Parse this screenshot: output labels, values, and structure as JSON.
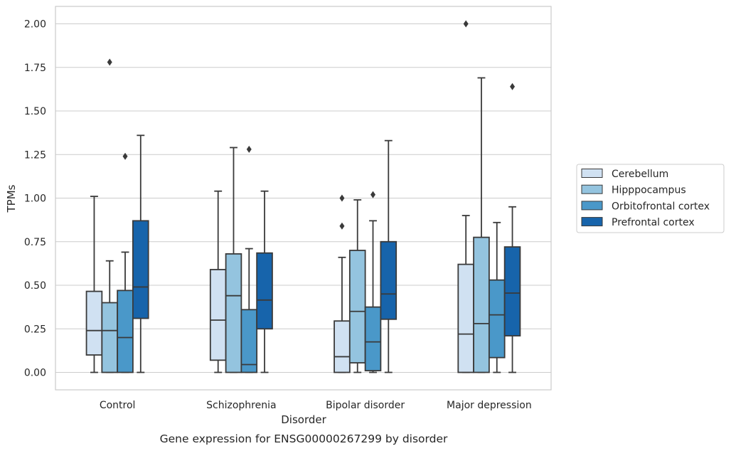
{
  "caption": "Gene expression for ENSG00000267299 by disorder",
  "chart_data": {
    "type": "box",
    "xlabel": "Disorder",
    "ylabel": "TPMs",
    "ylim": [
      -0.1,
      2.1
    ],
    "yticks": [
      0.0,
      0.25,
      0.5,
      0.75,
      1.0,
      1.25,
      1.5,
      1.75,
      2.0
    ],
    "ytick_labels": [
      "0.00",
      "0.25",
      "0.50",
      "0.75",
      "1.00",
      "1.25",
      "1.50",
      "1.75",
      "2.00"
    ],
    "grid": "horizontal",
    "legend_position": "center-right",
    "categories": [
      "Control",
      "Schizophrenia",
      "Bipolar disorder",
      "Major depression"
    ],
    "series": [
      {
        "name": "Cerebellum",
        "color": "#d0e1f2",
        "boxes": [
          {
            "whislo": 0.0,
            "q1": 0.1,
            "med": 0.24,
            "q3": 0.465,
            "whishi": 1.01,
            "fliers": []
          },
          {
            "whislo": 0.0,
            "q1": 0.07,
            "med": 0.3,
            "q3": 0.59,
            "whishi": 1.04,
            "fliers": []
          },
          {
            "whislo": 0.0,
            "q1": 0.0,
            "med": 0.09,
            "q3": 0.295,
            "whishi": 0.66,
            "fliers": [
              0.84,
              1.0
            ]
          },
          {
            "whislo": 0.0,
            "q1": 0.0,
            "med": 0.22,
            "q3": 0.62,
            "whishi": 0.9,
            "fliers": [
              2.0
            ]
          }
        ]
      },
      {
        "name": "Hipppocampus",
        "color": "#94c4df",
        "boxes": [
          {
            "whislo": 0.0,
            "q1": 0.0,
            "med": 0.24,
            "q3": 0.4,
            "whishi": 0.64,
            "fliers": [
              1.78
            ]
          },
          {
            "whislo": 0.0,
            "q1": 0.0,
            "med": 0.44,
            "q3": 0.68,
            "whishi": 1.29,
            "fliers": []
          },
          {
            "whislo": 0.0,
            "q1": 0.055,
            "med": 0.35,
            "q3": 0.7,
            "whishi": 0.99,
            "fliers": []
          },
          {
            "whislo": 0.0,
            "q1": 0.0,
            "med": 0.28,
            "q3": 0.775,
            "whishi": 1.69,
            "fliers": []
          }
        ]
      },
      {
        "name": "Orbitofrontal cortex",
        "color": "#4a98c9",
        "boxes": [
          {
            "whislo": 0.0,
            "q1": 0.0,
            "med": 0.2,
            "q3": 0.47,
            "whishi": 0.69,
            "fliers": [
              1.24
            ]
          },
          {
            "whislo": 0.0,
            "q1": 0.0,
            "med": 0.045,
            "q3": 0.36,
            "whishi": 0.71,
            "fliers": [
              1.28
            ]
          },
          {
            "whislo": 0.0,
            "q1": 0.01,
            "med": 0.175,
            "q3": 0.375,
            "whishi": 0.87,
            "fliers": [
              1.02
            ]
          },
          {
            "whislo": 0.0,
            "q1": 0.085,
            "med": 0.33,
            "q3": 0.53,
            "whishi": 0.86,
            "fliers": []
          }
        ]
      },
      {
        "name": "Prefrontal cortex",
        "color": "#1764ab",
        "boxes": [
          {
            "whislo": 0.0,
            "q1": 0.31,
            "med": 0.49,
            "q3": 0.87,
            "whishi": 1.36,
            "fliers": []
          },
          {
            "whislo": 0.0,
            "q1": 0.25,
            "med": 0.415,
            "q3": 0.685,
            "whishi": 1.04,
            "fliers": []
          },
          {
            "whislo": 0.0,
            "q1": 0.305,
            "med": 0.45,
            "q3": 0.75,
            "whishi": 1.33,
            "fliers": []
          },
          {
            "whislo": 0.0,
            "q1": 0.21,
            "med": 0.455,
            "q3": 0.72,
            "whishi": 0.95,
            "fliers": [
              1.64
            ]
          }
        ]
      }
    ]
  }
}
